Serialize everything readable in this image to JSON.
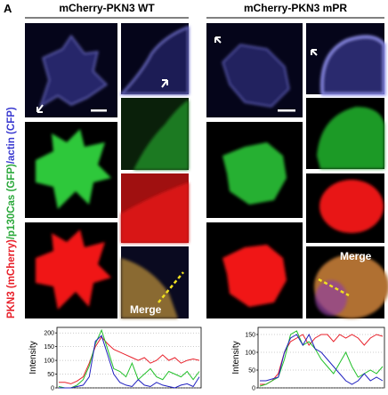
{
  "panel_label": "A",
  "side_label_parts": [
    {
      "text": "PKN3 (mCherry)",
      "color": "#e8202a"
    },
    {
      "text": "/p130Cas (GFP)",
      "color": "#2aa83a"
    },
    {
      "text": "/actin (CFP)",
      "color": "#3a3ad0"
    }
  ],
  "columns": [
    {
      "title": "mCherry-PKN3 WT",
      "merge_label": "Merge"
    },
    {
      "title": "mCherry-PKN3 mPR",
      "merge_label": "Merge"
    }
  ],
  "chart_data": [
    {
      "type": "line",
      "ylabel": "Intensity",
      "ylim": [
        0,
        220
      ],
      "yticks": [
        0,
        50,
        100,
        150,
        200
      ],
      "grid": true,
      "series": [
        {
          "color": "#e8202a",
          "values": [
            20,
            20,
            15,
            25,
            40,
            90,
            150,
            185,
            160,
            140,
            130,
            120,
            110,
            100,
            110,
            90,
            100,
            120,
            100,
            110,
            90,
            100,
            105,
            100
          ]
        },
        {
          "color": "#22c02a",
          "values": [
            5,
            0,
            0,
            10,
            30,
            80,
            160,
            210,
            140,
            70,
            60,
            40,
            90,
            30,
            50,
            70,
            40,
            30,
            60,
            50,
            40,
            60,
            30,
            60
          ]
        },
        {
          "color": "#2020c0",
          "values": [
            0,
            0,
            0,
            5,
            10,
            40,
            170,
            190,
            120,
            50,
            20,
            10,
            5,
            30,
            10,
            5,
            20,
            10,
            5,
            0,
            10,
            15,
            5,
            40
          ]
        }
      ]
    },
    {
      "type": "line",
      "ylabel": "Intensity",
      "ylim": [
        0,
        170
      ],
      "yticks": [
        0,
        50,
        100,
        150
      ],
      "grid": true,
      "series": [
        {
          "color": "#e8202a",
          "values": [
            10,
            10,
            20,
            40,
            100,
            130,
            140,
            150,
            120,
            140,
            150,
            150,
            130,
            150,
            140,
            150,
            140,
            120,
            140,
            150,
            145
          ]
        },
        {
          "color": "#22c02a",
          "values": [
            5,
            10,
            20,
            30,
            80,
            150,
            160,
            120,
            130,
            110,
            80,
            60,
            40,
            70,
            100,
            60,
            30,
            40,
            50,
            40,
            60
          ]
        },
        {
          "color": "#2020c0",
          "values": [
            20,
            20,
            25,
            30,
            100,
            140,
            150,
            120,
            150,
            110,
            100,
            80,
            60,
            40,
            20,
            10,
            20,
            40,
            20,
            30,
            20
          ]
        }
      ]
    }
  ]
}
